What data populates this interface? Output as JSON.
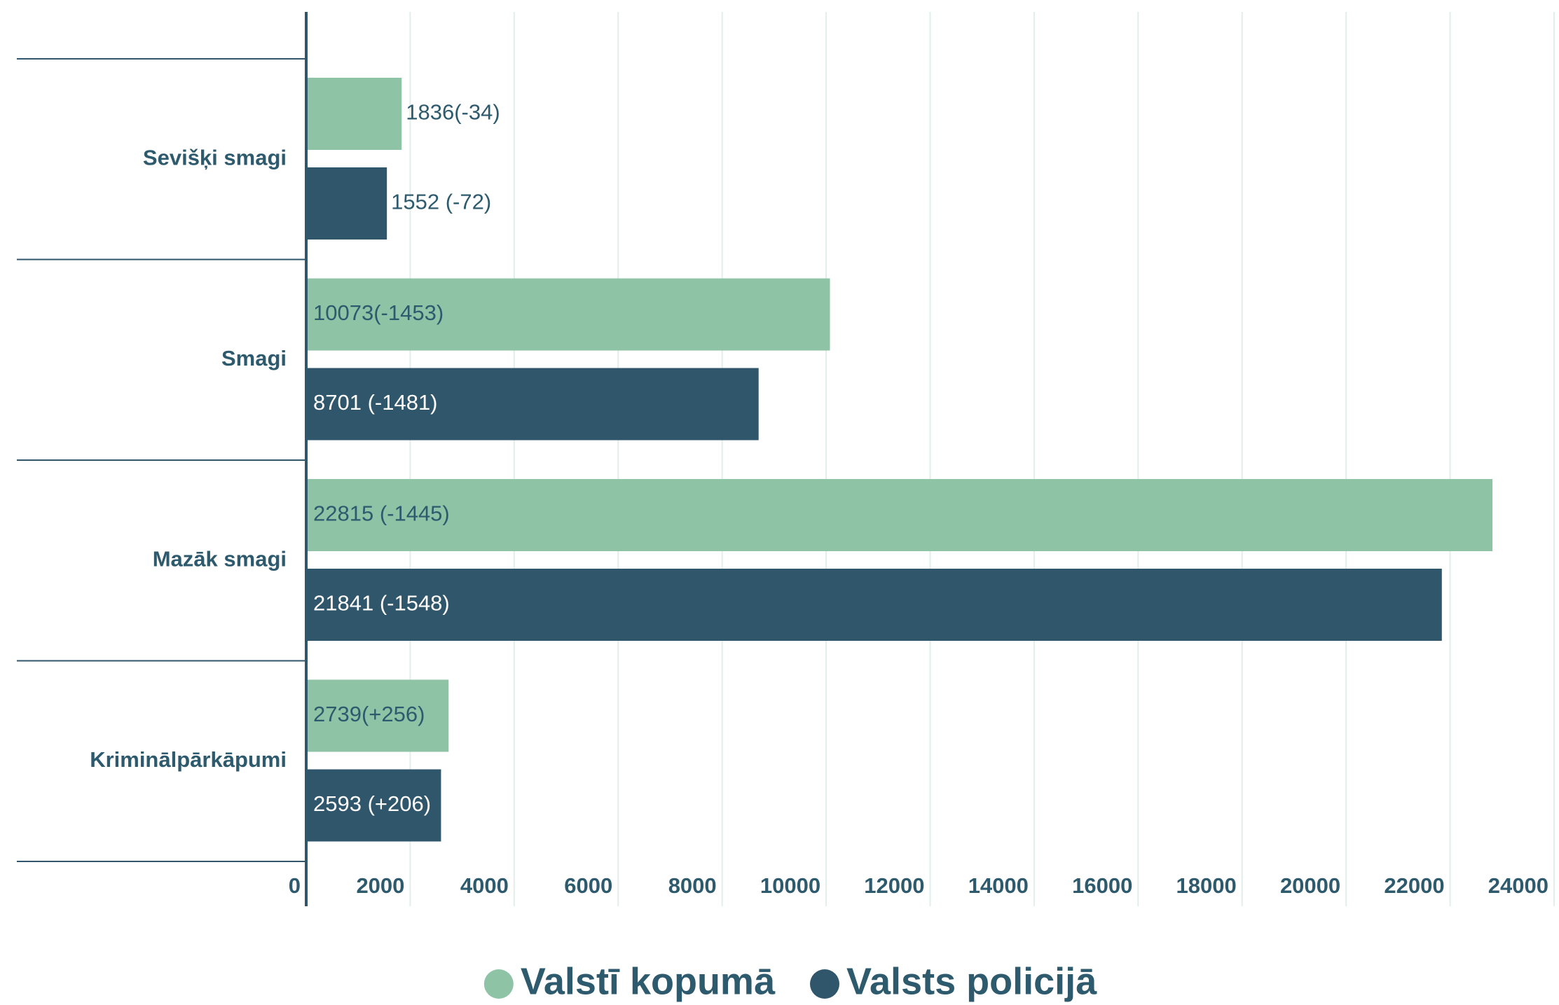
{
  "chart_data": {
    "type": "bar",
    "orientation": "horizontal",
    "categories": [
      "Sevišķi smagi",
      "Smagi",
      "Mazāk smagi",
      "Kriminālpārkāpumi"
    ],
    "series": [
      {
        "name": "Valstī kopumā",
        "color": "#8fc3a6",
        "values": [
          1836,
          10073,
          22815,
          2739
        ],
        "value_labels": [
          "1836(-34)",
          "10073(-1453)",
          "22815 (-1445)",
          "2739(+256)"
        ]
      },
      {
        "name": "Valsts policijā",
        "color": "#2f566b",
        "values": [
          1552,
          8701,
          21841,
          2593
        ],
        "value_labels": [
          "1552 (-72)",
          "8701 (-1481)",
          "21841 (-1548)",
          "2593 (+206)"
        ]
      }
    ],
    "xlim": [
      0,
      24000
    ],
    "xticks": [
      0,
      2000,
      4000,
      6000,
      8000,
      10000,
      12000,
      14000,
      16000,
      18000,
      20000,
      22000,
      24000
    ],
    "grid": true,
    "legend": "bottom"
  }
}
